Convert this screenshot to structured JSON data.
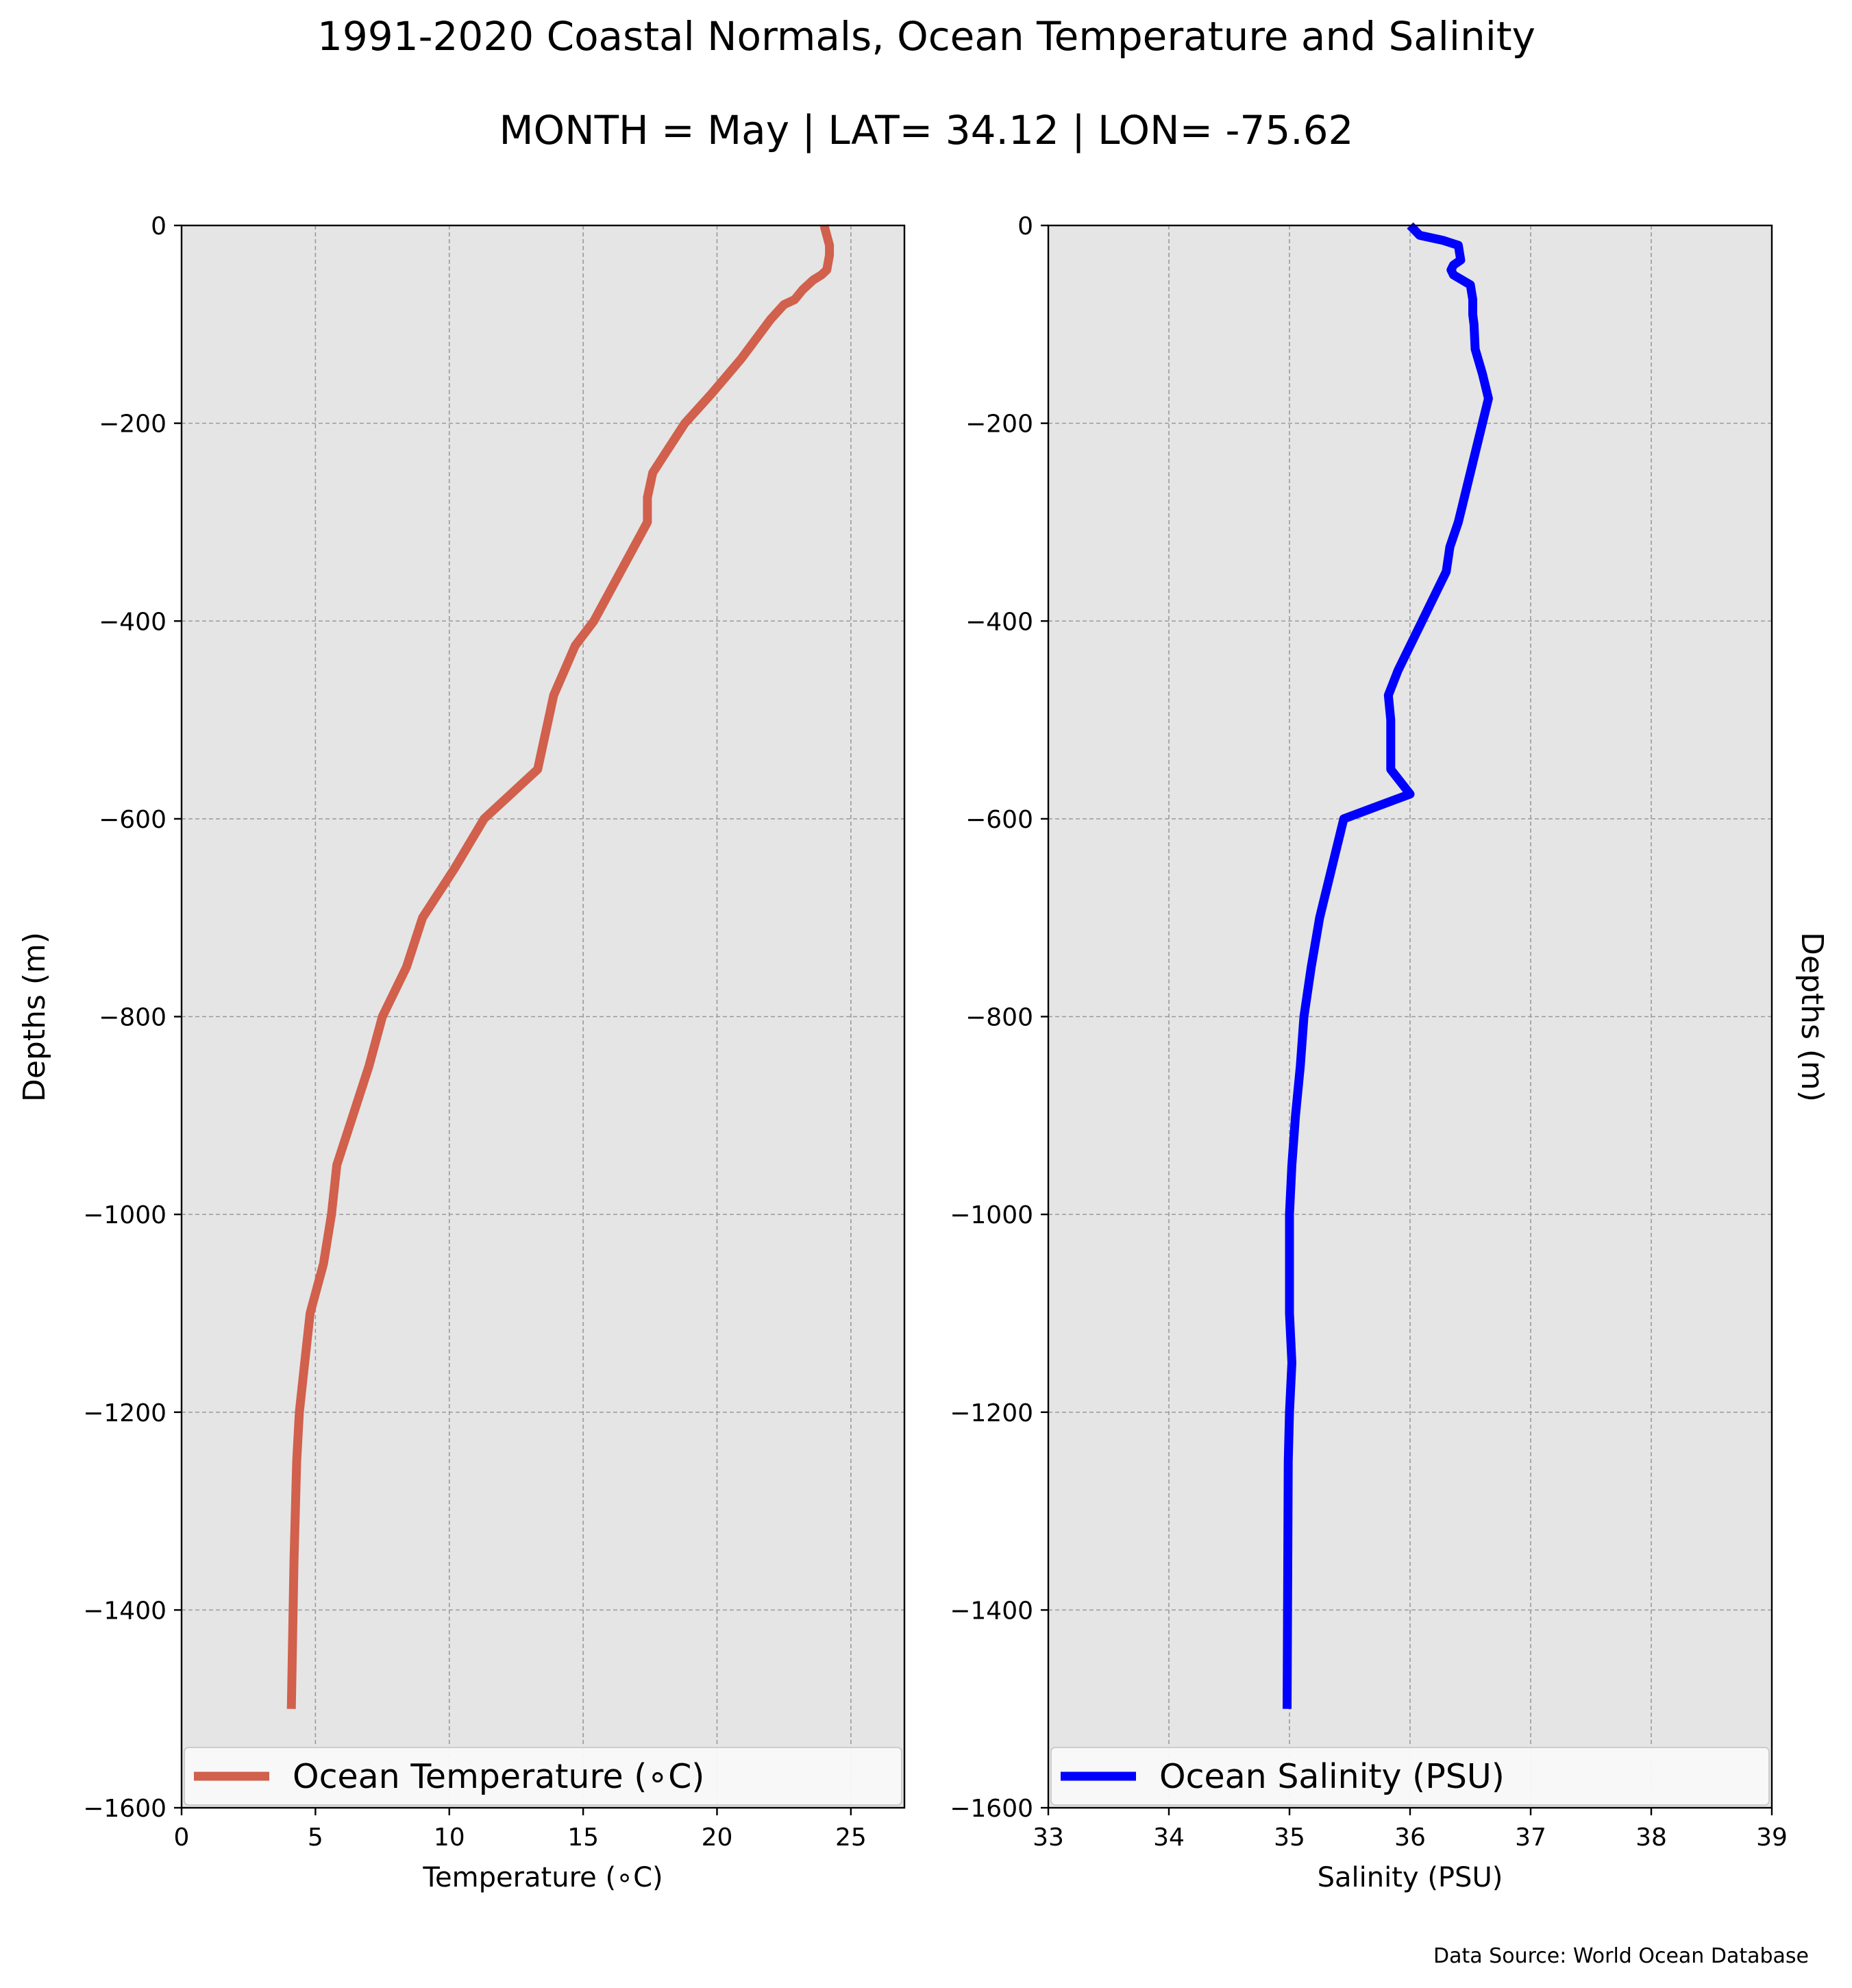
{
  "title": "1991-2020 Coastal Normals, Ocean Temperature and Salinity",
  "subtitle": "MONTH = May | LAT= 34.12 | LON= -75.62",
  "source_note": "Data Source: World Ocean Database",
  "colors": {
    "panel_bg": "#e5e5e5",
    "grid": "#9a9a9a",
    "temperature": "#d1604c",
    "salinity": "#0000ff"
  },
  "chart_data": [
    {
      "type": "line",
      "xlabel": "Temperature (∘C)",
      "ylabel": "Depths (m)",
      "xlim": [
        0,
        27
      ],
      "ylim": [
        -1600,
        0
      ],
      "xticks": [
        0,
        5,
        10,
        15,
        20,
        25
      ],
      "yticks": [
        0,
        -200,
        -400,
        -600,
        -800,
        -1000,
        -1200,
        -1400,
        -1600
      ],
      "grid": true,
      "legend_position": "bottom",
      "series": [
        {
          "name": "Ocean Temperature (∘C)",
          "color": "#d1604c",
          "x": [
            24.0,
            24.1,
            24.2,
            24.2,
            24.1,
            23.9,
            23.6,
            23.2,
            22.9,
            22.5,
            22.0,
            20.9,
            19.8,
            18.8,
            18.2,
            17.6,
            17.4,
            17.4,
            16.9,
            16.4,
            15.9,
            15.4,
            14.7,
            14.3,
            13.9,
            13.7,
            13.3,
            11.3,
            10.2,
            9.0,
            8.4,
            7.5,
            7.0,
            6.4,
            5.8,
            5.6,
            5.3,
            4.8,
            4.6,
            4.4,
            4.3,
            4.2,
            4.1
          ],
          "y": [
            0,
            -10,
            -20,
            -30,
            -45,
            -50,
            -55,
            -65,
            -75,
            -80,
            -95,
            -135,
            -170,
            -200,
            -225,
            -250,
            -275,
            -300,
            -325,
            -350,
            -375,
            -400,
            -425,
            -450,
            -475,
            -500,
            -550,
            -600,
            -650,
            -700,
            -750,
            -800,
            -850,
            -900,
            -950,
            -1000,
            -1050,
            -1100,
            -1150,
            -1200,
            -1250,
            -1350,
            -1500
          ]
        }
      ]
    },
    {
      "type": "line",
      "xlabel": "Salinity (PSU)",
      "ylabel": "Depths (m)",
      "xlim": [
        33,
        39
      ],
      "ylim": [
        -1600,
        0
      ],
      "xticks": [
        33,
        34,
        35,
        36,
        37,
        38,
        39
      ],
      "yticks": [
        0,
        -200,
        -400,
        -600,
        -800,
        -1000,
        -1200,
        -1400,
        -1600
      ],
      "grid": true,
      "legend_position": "bottom",
      "series": [
        {
          "name": "Ocean Salinity (PSU)",
          "color": "#0000ff",
          "x": [
            36.0,
            36.08,
            36.27,
            36.4,
            36.42,
            36.36,
            36.34,
            36.36,
            36.5,
            36.52,
            36.52,
            36.53,
            36.54,
            36.6,
            36.65,
            36.6,
            36.55,
            36.5,
            36.4,
            36.33,
            36.3,
            36.2,
            36.1,
            36.0,
            35.9,
            35.82,
            35.84,
            35.84,
            36.0,
            35.45,
            35.35,
            35.25,
            35.18,
            35.12,
            35.09,
            35.05,
            35.02,
            35.0,
            35.0,
            35.0,
            35.02,
            35.0,
            34.99,
            34.98
          ],
          "y": [
            0,
            -10,
            -15,
            -20,
            -35,
            -40,
            -45,
            -50,
            -60,
            -75,
            -90,
            -100,
            -125,
            -150,
            -175,
            -200,
            -225,
            -250,
            -300,
            -325,
            -350,
            -375,
            -400,
            -425,
            -450,
            -475,
            -500,
            -550,
            -575,
            -600,
            -650,
            -700,
            -750,
            -800,
            -850,
            -900,
            -950,
            -1000,
            -1050,
            -1100,
            -1150,
            -1200,
            -1250,
            -1500
          ]
        }
      ]
    }
  ]
}
